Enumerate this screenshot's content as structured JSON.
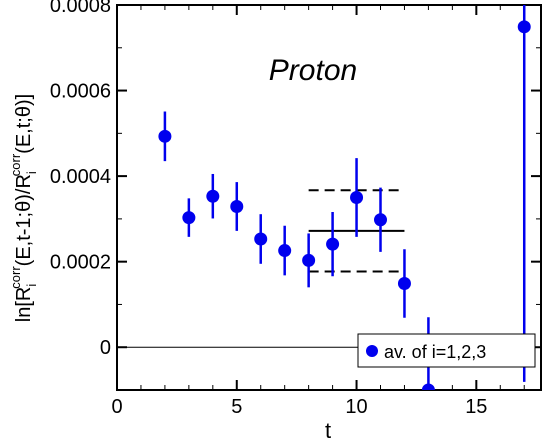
{
  "chart_data": {
    "type": "scatter",
    "annotation": "Proton",
    "xlabel": "t",
    "ylabel": {
      "prefix": "ln[R",
      "sub1": "i",
      "sup1": "corr",
      "middle": "(E,t-1;θ)/R",
      "sub2": "i",
      "sup2": "corr",
      "suffix": "(E,t;θ)]"
    },
    "xlim": [
      0,
      17.7
    ],
    "ylim": [
      -0.0001,
      0.0008
    ],
    "xticks": [
      0,
      5,
      10,
      15
    ],
    "yticks": [
      0,
      0.0002,
      0.0004,
      0.0006,
      0.0008
    ],
    "ytick_labels": [
      "0",
      "0.0002",
      "0.0004",
      "0.0006",
      "0.0008"
    ],
    "legend": {
      "label": "av. of i=1,2,3",
      "position": "bottom-right"
    },
    "series": [
      {
        "color": "#0000ee",
        "points": [
          {
            "x": 2,
            "y": 0.000493,
            "err": 5.8e-05
          },
          {
            "x": 3,
            "y": 0.000303,
            "err": 4.5e-05
          },
          {
            "x": 4,
            "y": 0.000353,
            "err": 5.2e-05
          },
          {
            "x": 5,
            "y": 0.000329,
            "err": 5.7e-05
          },
          {
            "x": 6,
            "y": 0.000253,
            "err": 5.8e-05
          },
          {
            "x": 7,
            "y": 0.000226,
            "err": 5.8e-05
          },
          {
            "x": 8,
            "y": 0.000203,
            "err": 6.3e-05
          },
          {
            "x": 9,
            "y": 0.000241,
            "err": 7.5e-05
          },
          {
            "x": 10,
            "y": 0.00035,
            "err": 9.2e-05
          },
          {
            "x": 11,
            "y": 0.000298,
            "err": 7.5e-05
          },
          {
            "x": 12,
            "y": 0.000149,
            "err": 8e-05
          },
          {
            "x": 13,
            "y": -0.0001,
            "err": 0.00017
          },
          {
            "x": 17,
            "y": 0.000749,
            "err": 0.00083
          }
        ]
      }
    ],
    "fit": {
      "x_range": [
        8,
        12
      ],
      "value": 0.000272,
      "band_upper": 0.000367,
      "band_lower": 0.000177
    },
    "reference_line": {
      "y": 0
    }
  }
}
